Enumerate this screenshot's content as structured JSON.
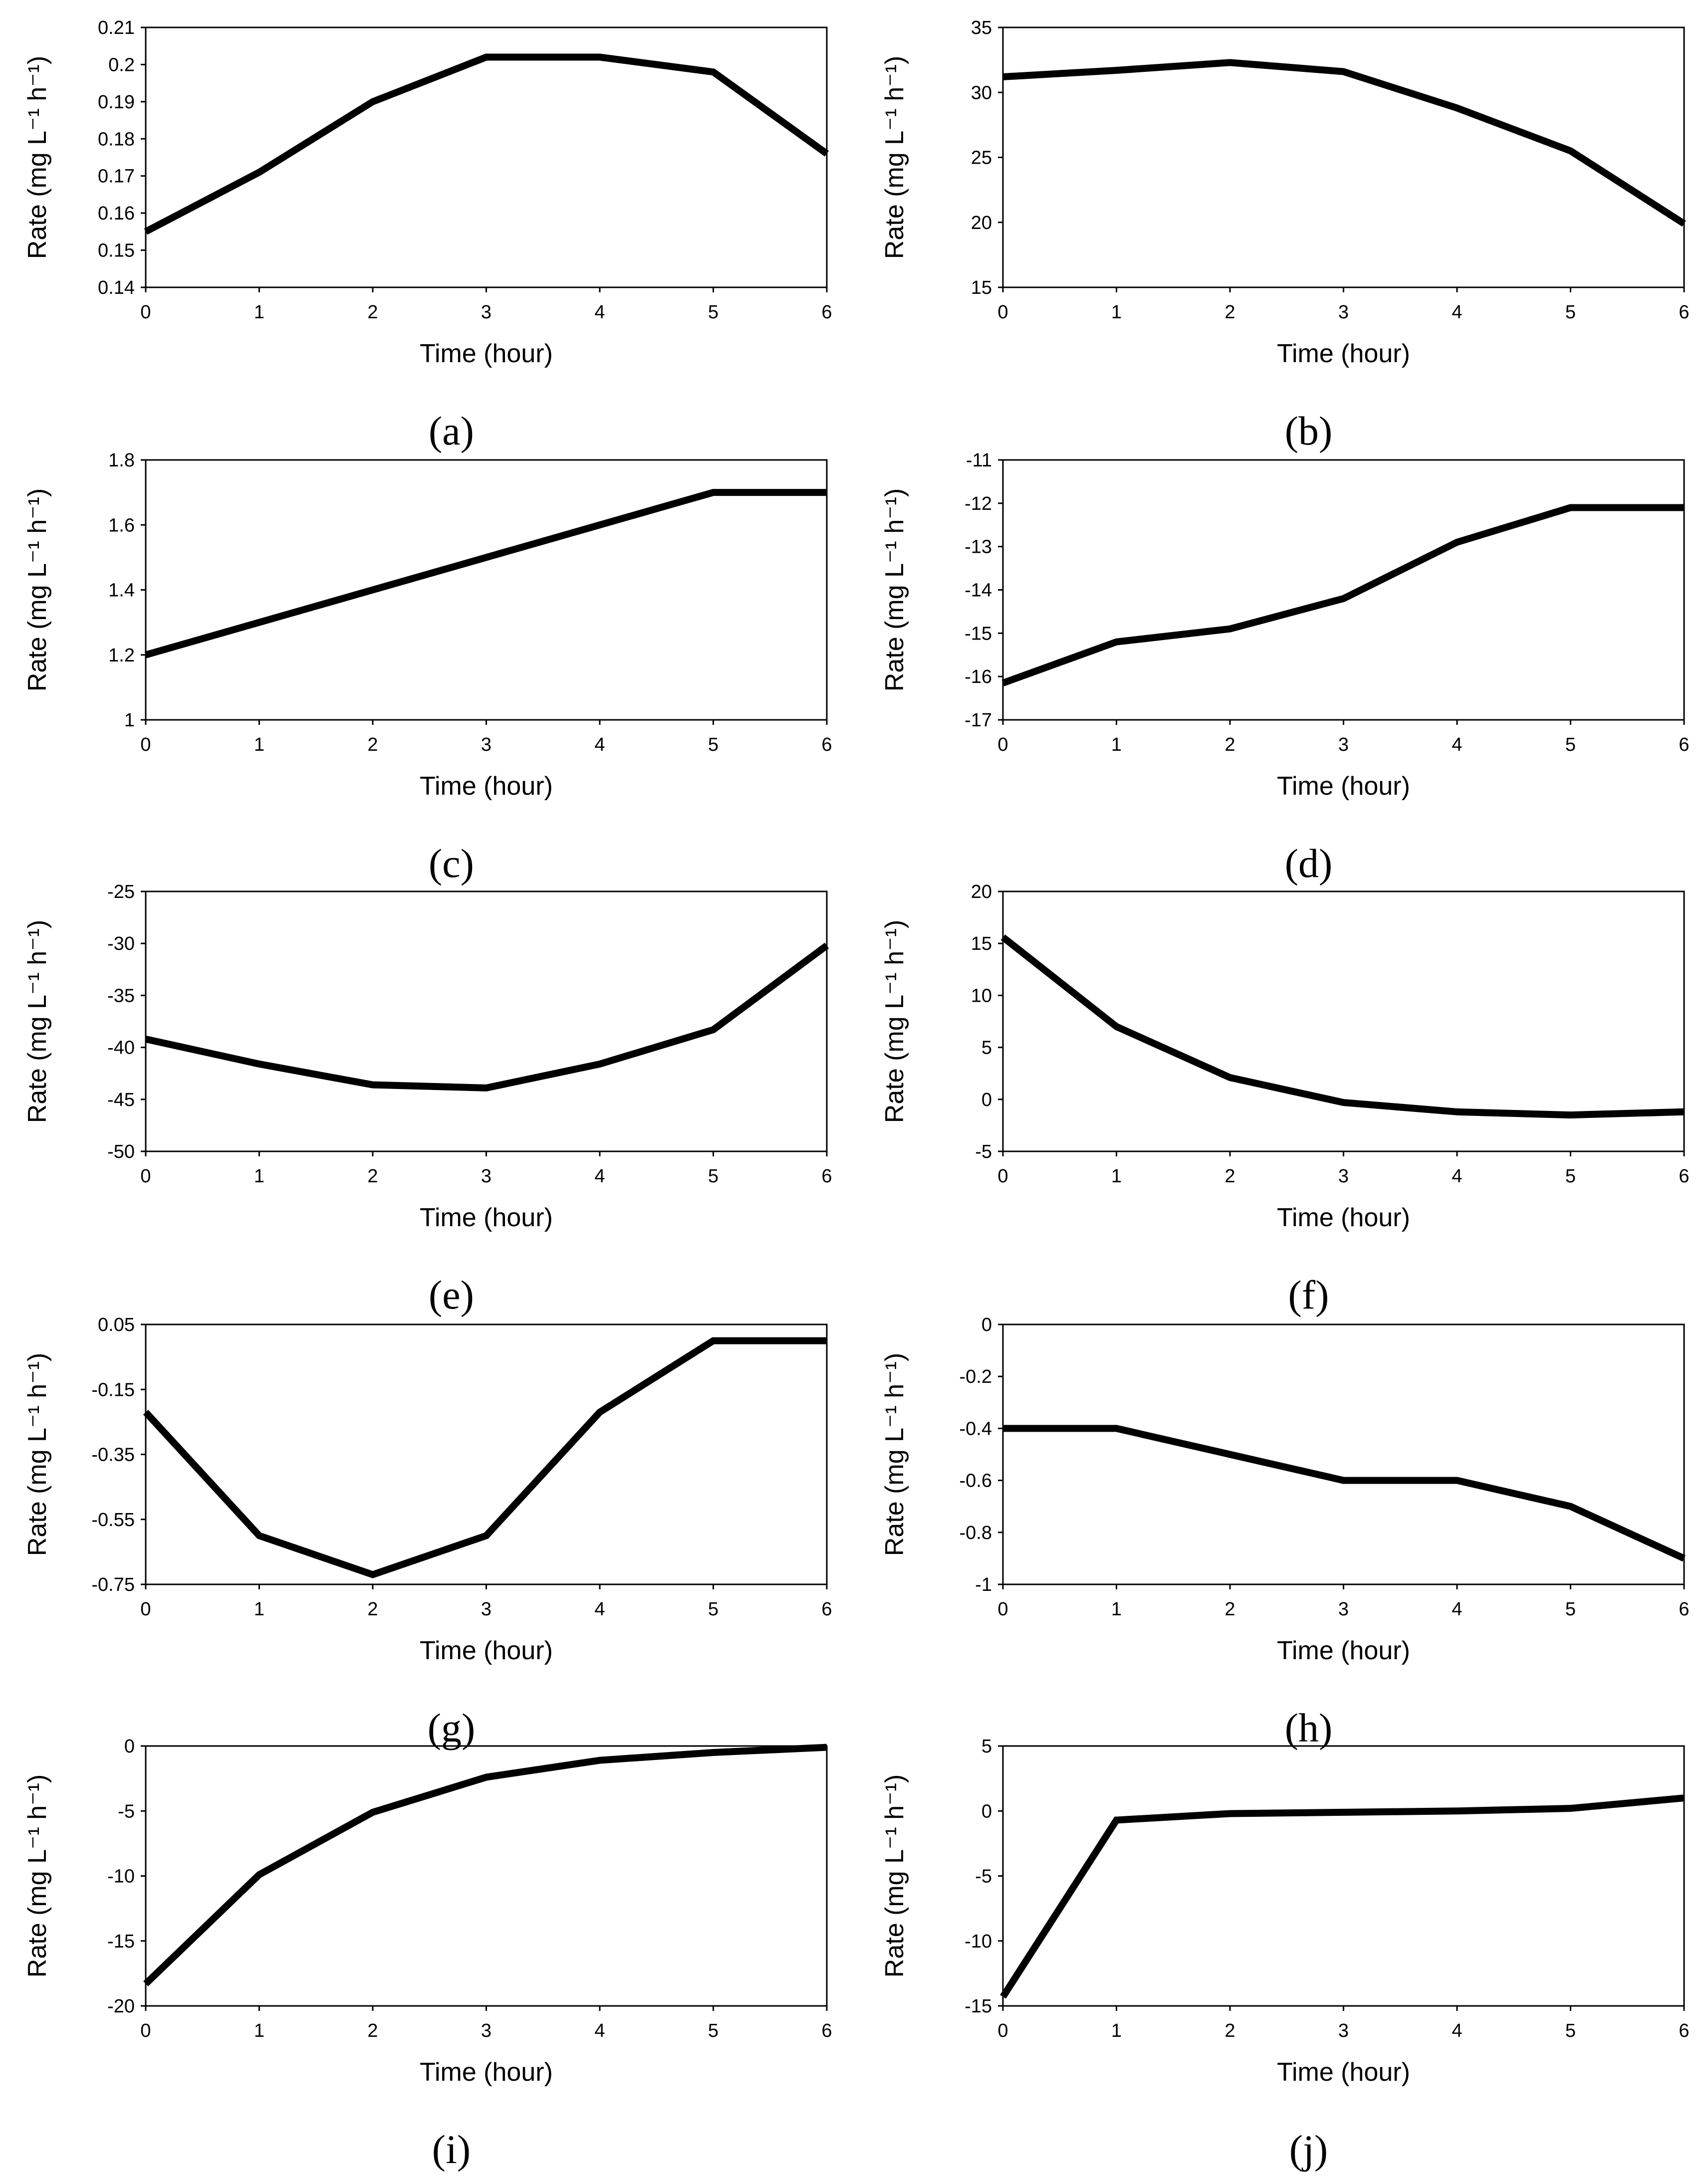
{
  "chart_data": [
    {
      "id": "a",
      "type": "line",
      "panel_label": "(a)",
      "xlabel": "Time (hour)",
      "ylabel": "Rate (mg L⁻¹ h⁻¹)",
      "x": [
        0,
        1,
        2,
        3,
        4,
        5,
        6
      ],
      "values": [
        0.155,
        0.171,
        0.19,
        0.202,
        0.202,
        0.198,
        0.176
      ],
      "ylim": [
        0.14,
        0.21
      ],
      "yticks": [
        "0.14",
        "0.15",
        "0.16",
        "0.17",
        "0.18",
        "0.19",
        "0.2",
        "0.21"
      ],
      "xticks": [
        "0",
        "1",
        "2",
        "3",
        "4",
        "5",
        "6"
      ]
    },
    {
      "id": "b",
      "type": "line",
      "panel_label": "(b)",
      "xlabel": "Time (hour)",
      "ylabel": "Rate (mg L⁻¹ h⁻¹)",
      "x": [
        0,
        1,
        2,
        3,
        4,
        5,
        6
      ],
      "values": [
        31.2,
        31.7,
        32.3,
        31.6,
        28.8,
        25.5,
        19.9
      ],
      "ylim": [
        15,
        35
      ],
      "yticks": [
        "15",
        "20",
        "25",
        "30",
        "35"
      ],
      "xticks": [
        "0",
        "1",
        "2",
        "3",
        "4",
        "5",
        "6"
      ]
    },
    {
      "id": "c",
      "type": "line",
      "panel_label": "(c)",
      "xlabel": "Time (hour)",
      "ylabel": "Rate (mg L⁻¹ h⁻¹)",
      "x": [
        0,
        1,
        2,
        3,
        4,
        5,
        6
      ],
      "values": [
        1.2,
        1.3,
        1.4,
        1.5,
        1.6,
        1.7,
        1.7
      ],
      "ylim": [
        1,
        1.8
      ],
      "yticks": [
        "1",
        "1.2",
        "1.4",
        "1.6",
        "1.8"
      ],
      "xticks": [
        "0",
        "1",
        "2",
        "3",
        "4",
        "5",
        "6"
      ]
    },
    {
      "id": "d",
      "type": "line",
      "panel_label": "(d)",
      "xlabel": "Time (hour)",
      "ylabel": "Rate (mg L⁻¹ h⁻¹)",
      "x": [
        0,
        1,
        2,
        3,
        4,
        5,
        6
      ],
      "values": [
        -16.15,
        -15.2,
        -14.9,
        -14.2,
        -12.9,
        -12.1,
        -12.1
      ],
      "ylim": [
        -17,
        -11
      ],
      "yticks": [
        "-17",
        "-16",
        "-15",
        "-14",
        "-13",
        "-12",
        "-11"
      ],
      "xticks": [
        "0",
        "1",
        "2",
        "3",
        "4",
        "5",
        "6"
      ]
    },
    {
      "id": "e",
      "type": "line",
      "panel_label": "(e)",
      "xlabel": "Time (hour)",
      "ylabel": "Rate (mg L⁻¹ h⁻¹)",
      "x": [
        0,
        1,
        2,
        3,
        4,
        5,
        6
      ],
      "values": [
        -39.2,
        -41.6,
        -43.6,
        -43.9,
        -41.6,
        -38.3,
        -30.2
      ],
      "ylim": [
        -50,
        -25
      ],
      "yticks": [
        "-50",
        "-45",
        "-40",
        "-35",
        "-30",
        "-25"
      ],
      "xticks": [
        "0",
        "1",
        "2",
        "3",
        "4",
        "5",
        "6"
      ]
    },
    {
      "id": "f",
      "type": "line",
      "panel_label": "(f)",
      "xlabel": "Time (hour)",
      "ylabel": "Rate (mg L⁻¹ h⁻¹)",
      "x": [
        0,
        1,
        2,
        3,
        4,
        5,
        6
      ],
      "values": [
        15.6,
        7.0,
        2.1,
        -0.3,
        -1.2,
        -1.5,
        -1.2
      ],
      "ylim": [
        -5,
        20
      ],
      "yticks": [
        "-5",
        "0",
        "5",
        "10",
        "15",
        "20"
      ],
      "xticks": [
        "0",
        "1",
        "2",
        "3",
        "4",
        "5",
        "6"
      ]
    },
    {
      "id": "g",
      "type": "line",
      "panel_label": "(g)",
      "xlabel": "Time (hour)",
      "ylabel": "Rate (mg L⁻¹ h⁻¹)",
      "x": [
        0,
        1,
        2,
        3,
        4,
        5,
        6
      ],
      "values": [
        -0.22,
        -0.6,
        -0.72,
        -0.6,
        -0.22,
        0.0,
        0.0
      ],
      "ylim": [
        -0.75,
        0.05
      ],
      "yticks": [
        "-0.75",
        "-0.55",
        "-0.35",
        "-0.15",
        "0.05"
      ],
      "xticks": [
        "0",
        "1",
        "2",
        "3",
        "4",
        "5",
        "6"
      ]
    },
    {
      "id": "h",
      "type": "line",
      "panel_label": "(h)",
      "xlabel": "Time (hour)",
      "ylabel": "Rate (mg L⁻¹ h⁻¹)",
      "x": [
        0,
        1,
        2,
        3,
        4,
        5,
        6
      ],
      "values": [
        -0.4,
        -0.4,
        -0.5,
        -0.6,
        -0.6,
        -0.7,
        -0.9
      ],
      "ylim": [
        -1,
        0
      ],
      "yticks": [
        "-1",
        "-0.8",
        "-0.6",
        "-0.4",
        "-0.2",
        "0"
      ],
      "xticks": [
        "0",
        "1",
        "2",
        "3",
        "4",
        "5",
        "6"
      ]
    },
    {
      "id": "i",
      "type": "line",
      "panel_label": "(i)",
      "xlabel": "Time (hour)",
      "ylabel": "Rate (mg L⁻¹ h⁻¹)",
      "x": [
        0,
        1,
        2,
        3,
        4,
        5,
        6
      ],
      "values": [
        -18.3,
        -9.9,
        -5.1,
        -2.4,
        -1.1,
        -0.5,
        -0.1
      ],
      "ylim": [
        -20,
        0
      ],
      "yticks": [
        "-20",
        "-15",
        "-10",
        "-5",
        "0"
      ],
      "xticks": [
        "0",
        "1",
        "2",
        "3",
        "4",
        "5",
        "6"
      ]
    },
    {
      "id": "j",
      "type": "line",
      "panel_label": "(j)",
      "xlabel": "Time (hour)",
      "ylabel": "Rate (mg L⁻¹ h⁻¹)",
      "x": [
        0,
        1,
        2,
        3,
        4,
        5,
        6
      ],
      "values": [
        -14.3,
        -0.7,
        -0.2,
        -0.1,
        0.0,
        0.2,
        1.0
      ],
      "ylim": [
        -15,
        5
      ],
      "yticks": [
        "-15",
        "-10",
        "-5",
        "0",
        "5"
      ],
      "xticks": [
        "0",
        "1",
        "2",
        "3",
        "4",
        "5",
        "6"
      ]
    }
  ]
}
